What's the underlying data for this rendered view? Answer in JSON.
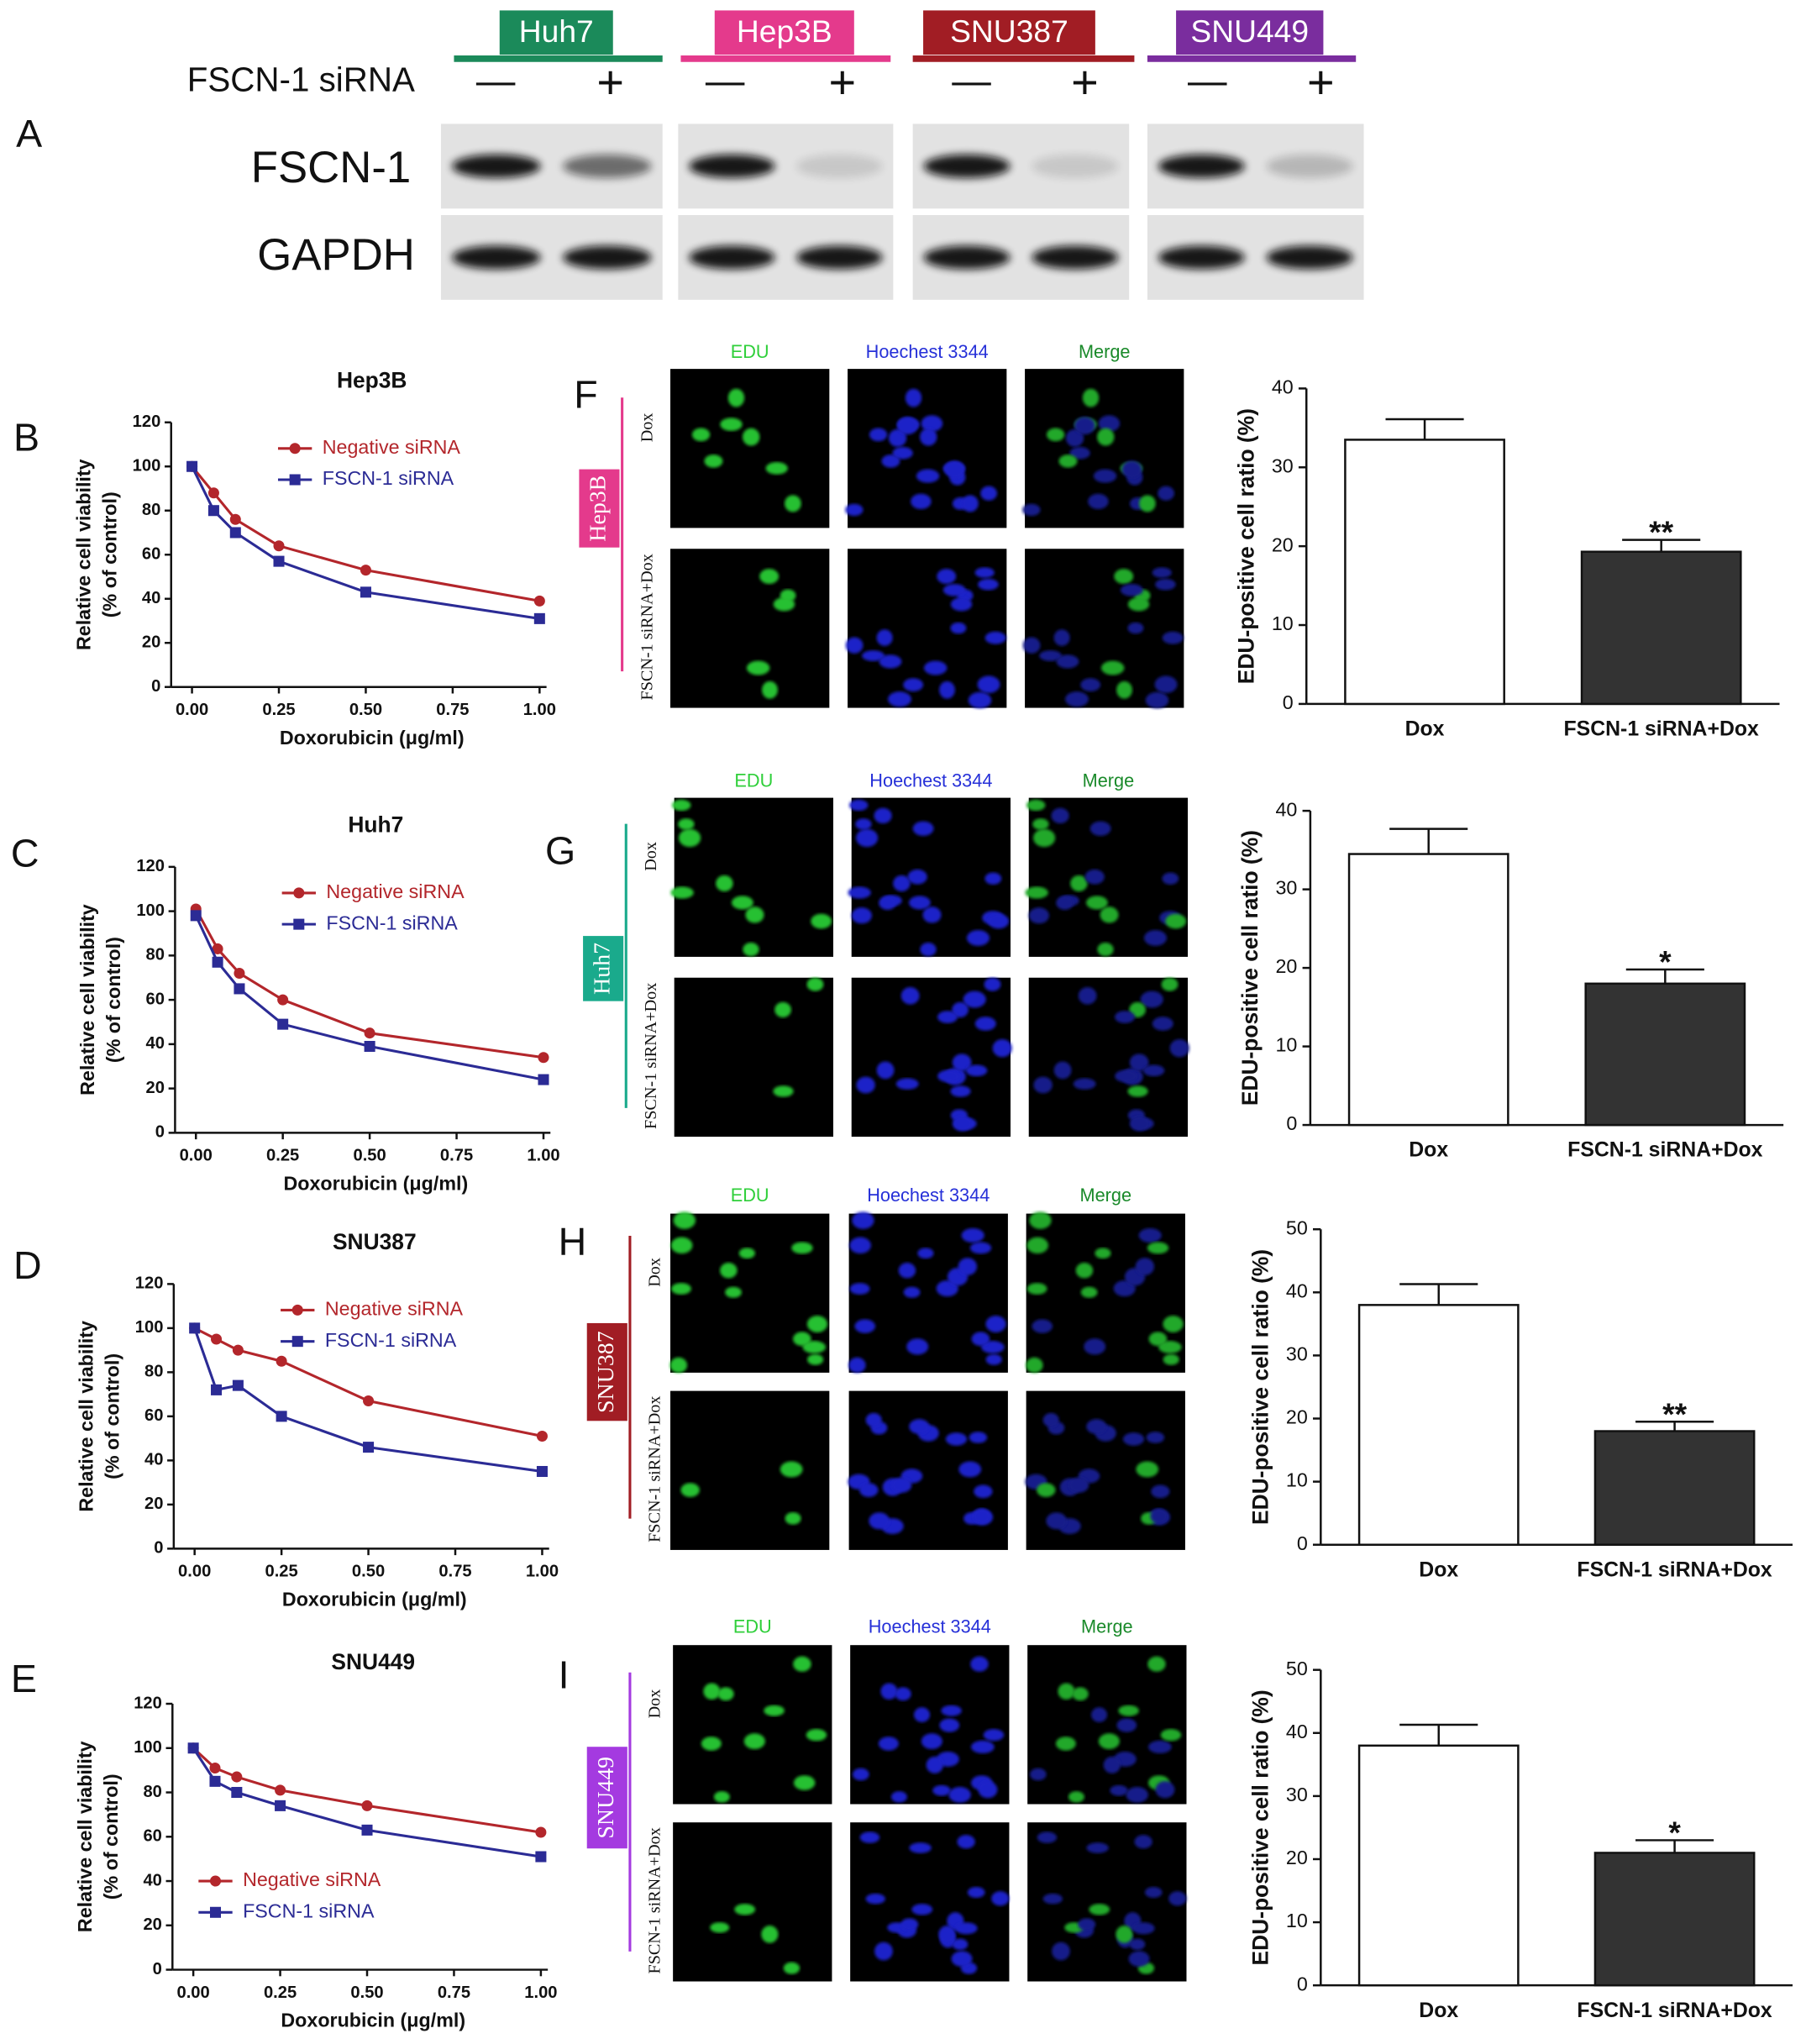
{
  "panel_letters": [
    "A",
    "B",
    "C",
    "D",
    "E",
    "F",
    "G",
    "H",
    "I"
  ],
  "blot": {
    "row_label": "FSCN-1 siRNA",
    "treatments": [
      "—",
      "+"
    ],
    "proteins": [
      "FSCN-1",
      "GAPDH"
    ],
    "cell_lines": [
      {
        "name": "Huh7",
        "color": "#1b8a5a"
      },
      {
        "name": "Hep3B",
        "color": "#e43a8c"
      },
      {
        "name": "SNU387",
        "color": "#a11d24"
      },
      {
        "name": "SNU449",
        "color": "#7a2d9e"
      }
    ]
  },
  "imaging": {
    "channels": [
      "EDU",
      "Hoechest 3344",
      "Merge"
    ],
    "conditions": [
      "Dox",
      "FSCN-1 siRNA+Dox"
    ],
    "cell_lines": [
      {
        "name": "Hep3B",
        "color": "#e43a8c"
      },
      {
        "name": "Huh7",
        "color": "#1aaa8c"
      },
      {
        "name": "SNU387",
        "color": "#a11d24"
      },
      {
        "name": "SNU449",
        "color": "#a43ae0"
      }
    ]
  },
  "chart_data": [
    {
      "type": "line",
      "title": "Hep3B",
      "xlabel": "Doxorubicin (μg/ml)",
      "ylabel": [
        "Relative cell viability",
        "(% of control)"
      ],
      "x": [
        0,
        0.0625,
        0.125,
        0.25,
        0.5,
        1.0
      ],
      "series": [
        {
          "name": "Negative siRNA",
          "color": "#b3262b",
          "values": [
            100,
            88,
            76,
            64,
            53,
            39
          ]
        },
        {
          "name": "FSCN-1 siRNA",
          "color": "#2b2b95",
          "values": [
            100,
            80,
            70,
            57,
            43,
            31
          ]
        }
      ],
      "xlim": [
        -0.06,
        1.02
      ],
      "ylim": [
        0,
        120
      ],
      "xticks": [
        {
          "value": 0,
          "label": "0.00"
        },
        {
          "value": 0.25,
          "label": "0.25"
        },
        {
          "value": 0.5,
          "label": "0.50"
        },
        {
          "value": 0.75,
          "label": "0.75"
        },
        {
          "value": 1,
          "label": "1.00"
        }
      ],
      "yticks": [
        0,
        20,
        40,
        60,
        80,
        100,
        120
      ],
      "legend": "upper right"
    },
    {
      "type": "line",
      "title": "Huh7",
      "xlabel": "Doxorubicin (μg/ml)",
      "ylabel": [
        "Relative cell viability",
        "(% of control)"
      ],
      "x": [
        0,
        0.0625,
        0.125,
        0.25,
        0.5,
        1.0
      ],
      "series": [
        {
          "name": "Negative siRNA",
          "color": "#b3262b",
          "values": [
            101,
            83,
            72,
            60,
            45,
            34
          ]
        },
        {
          "name": "FSCN-1 siRNA",
          "color": "#2b2b95",
          "values": [
            98,
            77,
            65,
            49,
            39,
            24
          ]
        }
      ],
      "xlim": [
        -0.06,
        1.02
      ],
      "ylim": [
        0,
        120
      ],
      "xticks": [
        {
          "value": 0,
          "label": "0.00"
        },
        {
          "value": 0.25,
          "label": "0.25"
        },
        {
          "value": 0.5,
          "label": "0.50"
        },
        {
          "value": 0.75,
          "label": "0.75"
        },
        {
          "value": 1,
          "label": "1.00"
        }
      ],
      "yticks": [
        0,
        20,
        40,
        60,
        80,
        100,
        120
      ],
      "legend": "upper right"
    },
    {
      "type": "line",
      "title": "SNU387",
      "xlabel": "Doxorubicin (μg/ml)",
      "ylabel": [
        "Relative cell viability",
        "(% of control)"
      ],
      "x": [
        0,
        0.0625,
        0.125,
        0.25,
        0.5,
        1.0
      ],
      "series": [
        {
          "name": "Negative siRNA",
          "color": "#b3262b",
          "values": [
            100,
            95,
            90,
            85,
            67,
            51
          ]
        },
        {
          "name": "FSCN-1 siRNA",
          "color": "#2b2b95",
          "values": [
            100,
            72,
            74,
            60,
            46,
            35
          ]
        }
      ],
      "xlim": [
        -0.06,
        1.02
      ],
      "ylim": [
        0,
        120
      ],
      "xticks": [
        {
          "value": 0,
          "label": "0.00"
        },
        {
          "value": 0.25,
          "label": "0.25"
        },
        {
          "value": 0.5,
          "label": "0.50"
        },
        {
          "value": 0.75,
          "label": "0.75"
        },
        {
          "value": 1,
          "label": "1.00"
        }
      ],
      "yticks": [
        0,
        20,
        40,
        60,
        80,
        100,
        120
      ],
      "legend": "upper right"
    },
    {
      "type": "line",
      "title": "SNU449",
      "xlabel": "Doxorubicin (μg/ml)",
      "ylabel": [
        "Relative cell viability",
        "(% of control)"
      ],
      "x": [
        0,
        0.0625,
        0.125,
        0.25,
        0.5,
        1.0
      ],
      "series": [
        {
          "name": "Negative siRNA",
          "color": "#b3262b",
          "values": [
            100,
            91,
            87,
            81,
            74,
            62
          ]
        },
        {
          "name": "FSCN-1 siRNA",
          "color": "#2b2b95",
          "values": [
            100,
            85,
            80,
            74,
            63,
            51
          ]
        }
      ],
      "xlim": [
        -0.06,
        1.02
      ],
      "ylim": [
        0,
        120
      ],
      "xticks": [
        {
          "value": 0,
          "label": "0.00"
        },
        {
          "value": 0.25,
          "label": "0.25"
        },
        {
          "value": 0.5,
          "label": "0.50"
        },
        {
          "value": 0.75,
          "label": "0.75"
        },
        {
          "value": 1,
          "label": "1.00"
        }
      ],
      "yticks": [
        0,
        20,
        40,
        60,
        80,
        100,
        120
      ],
      "legend": "lower left"
    },
    {
      "type": "bar",
      "ylabel": "EDU-positive cell ratio (%)",
      "categories": [
        "Dox",
        "FSCN-1 siRNA+Dox"
      ],
      "values": [
        33.5,
        19.3
      ],
      "errors": [
        2.6,
        1.5
      ],
      "colors": [
        "#ffffff",
        "#333333"
      ],
      "significance": "**",
      "ylim": [
        0,
        40
      ],
      "yticks": [
        0,
        10,
        20,
        30,
        40
      ]
    },
    {
      "type": "bar",
      "ylabel": "EDU-positive cell ratio (%)",
      "categories": [
        "Dox",
        "FSCN-1 siRNA+Dox"
      ],
      "values": [
        34.5,
        18
      ],
      "errors": [
        3.2,
        1.8
      ],
      "colors": [
        "#ffffff",
        "#333333"
      ],
      "significance": "*",
      "ylim": [
        0,
        40
      ],
      "yticks": [
        0,
        10,
        20,
        30,
        40
      ]
    },
    {
      "type": "bar",
      "ylabel": "EDU-positive cell ratio (%)",
      "categories": [
        "Dox",
        "FSCN-1 siRNA+Dox"
      ],
      "values": [
        38,
        18
      ],
      "errors": [
        3.3,
        1.5
      ],
      "colors": [
        "#ffffff",
        "#333333"
      ],
      "significance": "**",
      "ylim": [
        0,
        50
      ],
      "yticks": [
        0,
        10,
        20,
        30,
        40,
        50
      ]
    },
    {
      "type": "bar",
      "ylabel": "EDU-positive cell ratio (%)",
      "categories": [
        "Dox",
        "FSCN-1 siRNA+Dox"
      ],
      "values": [
        38,
        21
      ],
      "errors": [
        3.3,
        2
      ],
      "colors": [
        "#ffffff",
        "#333333"
      ],
      "significance": "*",
      "ylim": [
        0,
        50
      ],
      "yticks": [
        0,
        10,
        20,
        30,
        40,
        50
      ]
    }
  ]
}
